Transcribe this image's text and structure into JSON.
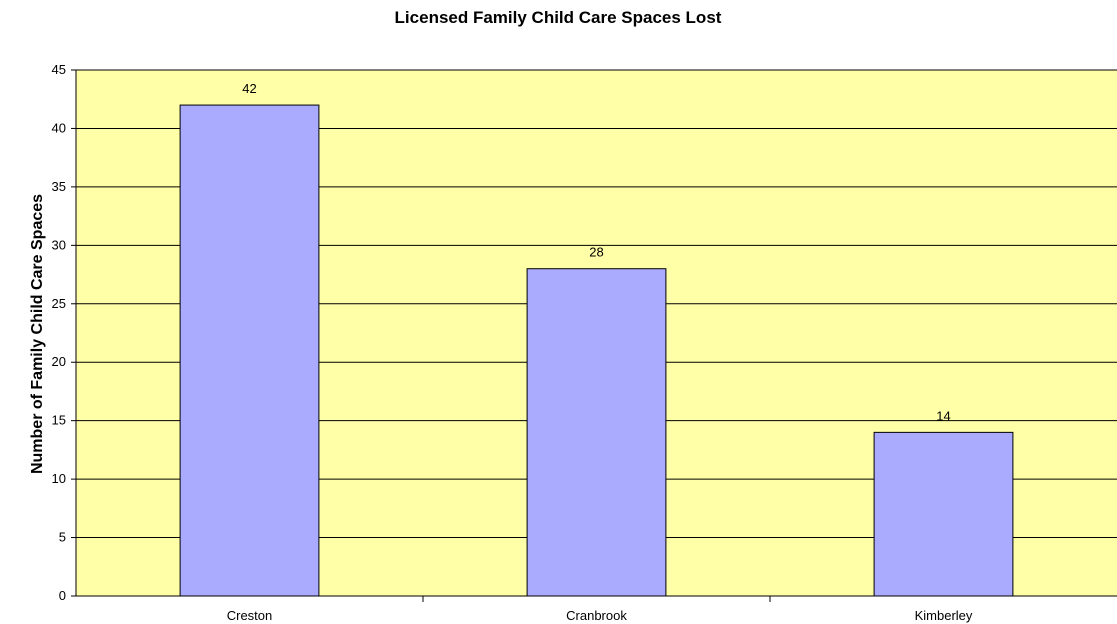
{
  "chart_data": {
    "type": "bar",
    "title": "Licensed Family Child Care Spaces Lost",
    "xlabel": "",
    "ylabel": "Number of Family Child Care Spaces",
    "categories": [
      "Creston",
      "Cranbrook",
      "Kimberley"
    ],
    "values": [
      42,
      28,
      14
    ],
    "data_labels": [
      "42",
      "28",
      "14"
    ],
    "ylim": [
      0,
      45
    ],
    "yticks": [
      0,
      5,
      10,
      15,
      20,
      25,
      30,
      35,
      40,
      45
    ],
    "grid": true,
    "legend": "none",
    "colors": {
      "plot_background": "#FFFFA8",
      "bar_fill": "#AAAAFF",
      "bar_stroke": "#000000",
      "gridline": "#000000"
    }
  }
}
